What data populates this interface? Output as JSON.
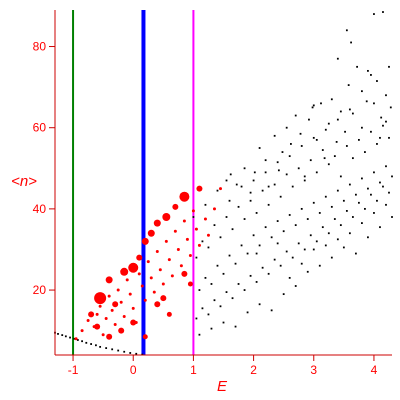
{
  "chart_data": {
    "type": "scatter",
    "xlabel": "E",
    "ylabel_parts": {
      "open": "<",
      "var": "n",
      "close": ">"
    },
    "xlim": [
      -1.3,
      4.3
    ],
    "ylim": [
      4,
      89
    ],
    "x_ticks": [
      -1,
      0,
      1,
      2,
      3,
      4
    ],
    "y_ticks": [
      20,
      40,
      60,
      80
    ],
    "x_tick_labels": [
      "-1",
      "0",
      "1",
      "2",
      "3",
      "4"
    ],
    "y_tick_labels": [
      "20",
      "40",
      "60",
      "80"
    ],
    "vertical_lines": [
      {
        "x": -1.0,
        "color": "#008000",
        "weight": "thin"
      },
      {
        "x": 0.17,
        "color": "#0000ff",
        "weight": "thick"
      },
      {
        "x": 1.0,
        "color": "#ff00ff",
        "weight": "thin"
      }
    ],
    "series": [
      {
        "color": "#000000",
        "marker": "dot",
        "points": [
          [
            -1.3,
            9.5
          ],
          [
            -1.25,
            9.2
          ],
          [
            -1.18,
            8.9
          ],
          [
            -1.12,
            8.6
          ],
          [
            -1.05,
            8.3
          ],
          [
            -0.98,
            8.0
          ],
          [
            -0.92,
            7.7
          ],
          [
            -0.85,
            7.4
          ],
          [
            -0.78,
            7.0
          ],
          [
            -0.7,
            6.7
          ],
          [
            -0.62,
            6.4
          ],
          [
            -0.55,
            6.0
          ],
          [
            -0.45,
            5.7
          ],
          [
            -0.35,
            5.4
          ],
          [
            -0.25,
            5.1
          ],
          [
            -0.15,
            4.8
          ],
          [
            -0.05,
            4.5
          ],
          [
            0.05,
            4.3
          ],
          [
            0.15,
            4.1
          ],
          [
            1.55,
            47.0
          ],
          [
            1.62,
            48.5
          ],
          [
            1.72,
            46.0
          ],
          [
            1.85,
            50.0
          ],
          [
            1.95,
            44.0
          ],
          [
            2.02,
            49.0
          ],
          [
            2.1,
            55.0
          ],
          [
            2.2,
            52.0
          ],
          [
            2.25,
            45.5
          ],
          [
            2.35,
            58.0
          ],
          [
            2.42,
            49.5
          ],
          [
            2.48,
            54.0
          ],
          [
            2.55,
            60.0
          ],
          [
            2.62,
            56.0
          ],
          [
            2.7,
            63.0
          ],
          [
            2.78,
            58.5
          ],
          [
            2.85,
            48.0
          ],
          [
            2.92,
            62.0
          ],
          [
            3.0,
            65.5
          ],
          [
            3.05,
            57.0
          ],
          [
            3.12,
            66.0
          ],
          [
            3.18,
            52.5
          ],
          [
            3.25,
            61.0
          ],
          [
            3.3,
            67.0
          ],
          [
            3.38,
            56.5
          ],
          [
            3.45,
            64.0
          ],
          [
            3.52,
            59.0
          ],
          [
            3.58,
            70.5
          ],
          [
            3.65,
            63.5
          ],
          [
            3.72,
            75.0
          ],
          [
            3.8,
            69.0
          ],
          [
            3.88,
            66.5
          ],
          [
            3.95,
            73.0
          ],
          [
            4.05,
            71.5
          ],
          [
            4.12,
            62.5
          ],
          [
            4.2,
            68.0
          ],
          [
            4.28,
            65.0
          ],
          [
            3.4,
            77.0
          ],
          [
            3.62,
            81.0
          ],
          [
            3.9,
            74.0
          ],
          [
            4.0,
            88.0
          ],
          [
            4.15,
            88.5
          ],
          [
            4.25,
            75.0
          ],
          [
            4.1,
            57.5
          ],
          [
            3.55,
            84.0
          ],
          [
            2.98,
            65.0
          ],
          [
            1.05,
            28.0
          ],
          [
            1.15,
            32.0
          ],
          [
            1.25,
            30.5
          ],
          [
            1.35,
            36.0
          ],
          [
            1.45,
            33.0
          ],
          [
            1.55,
            38.0
          ],
          [
            1.65,
            35.0
          ],
          [
            1.75,
            40.5
          ],
          [
            1.85,
            37.5
          ],
          [
            1.95,
            42.0
          ],
          [
            2.05,
            39.0
          ],
          [
            2.15,
            44.5
          ],
          [
            2.25,
            41.0
          ],
          [
            2.35,
            46.0
          ],
          [
            2.45,
            43.0
          ],
          [
            2.55,
            48.5
          ],
          [
            2.65,
            45.5
          ],
          [
            2.75,
            50.0
          ],
          [
            2.85,
            47.0
          ],
          [
            2.95,
            52.0
          ],
          [
            3.05,
            49.0
          ],
          [
            3.15,
            54.5
          ],
          [
            3.25,
            51.0
          ],
          [
            3.35,
            53.0
          ],
          [
            3.45,
            48.0
          ],
          [
            3.55,
            55.5
          ],
          [
            3.65,
            52.5
          ],
          [
            3.75,
            57.0
          ],
          [
            3.85,
            54.0
          ],
          [
            3.95,
            59.0
          ],
          [
            4.05,
            56.0
          ],
          [
            4.15,
            60.5
          ],
          [
            4.25,
            57.5
          ],
          [
            1.1,
            20.0
          ],
          [
            1.2,
            23.0
          ],
          [
            1.3,
            21.5
          ],
          [
            1.4,
            26.0
          ],
          [
            1.5,
            24.0
          ],
          [
            1.6,
            28.5
          ],
          [
            1.7,
            26.5
          ],
          [
            1.8,
            31.0
          ],
          [
            1.9,
            29.0
          ],
          [
            2.0,
            33.5
          ],
          [
            2.1,
            31.0
          ],
          [
            2.2,
            35.5
          ],
          [
            2.3,
            33.0
          ],
          [
            2.4,
            37.0
          ],
          [
            2.5,
            34.5
          ],
          [
            2.6,
            38.5
          ],
          [
            2.7,
            36.0
          ],
          [
            2.8,
            40.0
          ],
          [
            2.9,
            37.5
          ],
          [
            3.0,
            41.5
          ],
          [
            3.1,
            39.0
          ],
          [
            3.2,
            43.0
          ],
          [
            3.3,
            40.5
          ],
          [
            3.4,
            44.5
          ],
          [
            3.5,
            42.0
          ],
          [
            3.6,
            46.0
          ],
          [
            3.7,
            43.5
          ],
          [
            3.8,
            47.5
          ],
          [
            3.9,
            45.0
          ],
          [
            4.0,
            49.0
          ],
          [
            4.1,
            46.5
          ],
          [
            4.2,
            50.5
          ],
          [
            4.3,
            48.0
          ],
          [
            1.05,
            13.0
          ],
          [
            1.15,
            15.5
          ],
          [
            1.25,
            14.0
          ],
          [
            1.35,
            17.5
          ],
          [
            1.45,
            16.0
          ],
          [
            1.55,
            19.5
          ],
          [
            1.65,
            18.0
          ],
          [
            1.75,
            21.5
          ],
          [
            1.85,
            20.0
          ],
          [
            1.95,
            23.5
          ],
          [
            2.05,
            22.0
          ],
          [
            2.15,
            25.5
          ],
          [
            2.25,
            24.0
          ],
          [
            2.35,
            27.5
          ],
          [
            2.45,
            26.0
          ],
          [
            2.55,
            29.5
          ],
          [
            2.65,
            28.0
          ],
          [
            2.75,
            31.5
          ],
          [
            2.85,
            30.0
          ],
          [
            2.95,
            33.5
          ],
          [
            3.05,
            32.0
          ],
          [
            3.15,
            35.5
          ],
          [
            3.25,
            34.0
          ],
          [
            3.35,
            37.5
          ],
          [
            3.45,
            36.0
          ],
          [
            3.55,
            39.5
          ],
          [
            3.65,
            38.0
          ],
          [
            3.75,
            41.5
          ],
          [
            3.85,
            40.0
          ],
          [
            3.95,
            43.5
          ],
          [
            4.05,
            42.0
          ],
          [
            4.15,
            45.5
          ],
          [
            4.25,
            44.0
          ],
          [
            1.1,
            9.0
          ],
          [
            1.3,
            10.5
          ],
          [
            1.5,
            12.0
          ],
          [
            1.7,
            11.0
          ],
          [
            1.9,
            14.5
          ],
          [
            2.1,
            16.5
          ],
          [
            2.3,
            15.0
          ],
          [
            2.5,
            19.0
          ],
          [
            2.7,
            21.0
          ],
          [
            2.9,
            24.5
          ],
          [
            3.1,
            26.0
          ],
          [
            3.3,
            28.0
          ],
          [
            3.5,
            30.5
          ],
          [
            3.7,
            29.0
          ],
          [
            3.9,
            33.0
          ],
          [
            4.1,
            35.5
          ],
          [
            4.3,
            38.0
          ],
          [
            2.05,
            29.0
          ],
          [
            2.4,
            31.5
          ],
          [
            2.6,
            23.0
          ],
          [
            2.8,
            26.5
          ],
          [
            3.0,
            30.0
          ],
          [
            3.2,
            31.0
          ],
          [
            3.4,
            32.5
          ],
          [
            3.6,
            34.0
          ],
          [
            3.8,
            36.5
          ],
          [
            4.0,
            39.0
          ],
          [
            4.2,
            41.0
          ],
          [
            1.6,
            42.0
          ],
          [
            1.8,
            45.5
          ],
          [
            2.0,
            47.0
          ],
          [
            2.2,
            49.0
          ],
          [
            2.4,
            51.5
          ],
          [
            2.6,
            53.0
          ],
          [
            2.8,
            55.5
          ],
          [
            3.0,
            57.5
          ],
          [
            3.2,
            59.5
          ],
          [
            3.4,
            62.0
          ],
          [
            3.6,
            64.5
          ],
          [
            3.8,
            60.0
          ],
          [
            4.0,
            66.0
          ],
          [
            4.2,
            61.5
          ],
          [
            1.4,
            44.5
          ],
          [
            1.2,
            41.0
          ],
          [
            1.0,
            38.0
          ]
        ]
      },
      {
        "color": "#ff0000",
        "marker": "filled-circle-sized",
        "points": [
          [
            -0.95,
            8.0,
            1.5
          ],
          [
            -0.85,
            10.0,
            1.5
          ],
          [
            -0.75,
            12.5,
            1.5
          ],
          [
            -0.65,
            11.0,
            1.5
          ],
          [
            -0.6,
            14.0,
            1.5
          ],
          [
            -0.55,
            16.0,
            1.5
          ],
          [
            -0.5,
            9.0,
            1.5
          ],
          [
            -0.45,
            13.0,
            1.5
          ],
          [
            -0.4,
            18.5,
            1.5
          ],
          [
            -0.35,
            15.0,
            1.5
          ],
          [
            -0.3,
            11.5,
            1.5
          ],
          [
            -0.25,
            20.0,
            1.5
          ],
          [
            -0.2,
            17.0,
            1.5
          ],
          [
            -0.15,
            13.5,
            1.5
          ],
          [
            -0.1,
            22.5,
            1.5
          ],
          [
            -0.05,
            19.0,
            1.5
          ],
          [
            0.0,
            15.5,
            1.5
          ],
          [
            0.05,
            12.0,
            1.5
          ],
          [
            0.1,
            24.0,
            1.5
          ],
          [
            0.15,
            21.0,
            1.5
          ],
          [
            0.2,
            17.5,
            1.5
          ],
          [
            0.25,
            27.0,
            1.5
          ],
          [
            0.3,
            23.0,
            1.5
          ],
          [
            0.35,
            19.5,
            1.5
          ],
          [
            0.4,
            29.5,
            1.5
          ],
          [
            0.45,
            25.0,
            1.5
          ],
          [
            0.5,
            21.5,
            1.5
          ],
          [
            0.55,
            32.0,
            1.5
          ],
          [
            0.6,
            27.5,
            1.5
          ],
          [
            0.65,
            23.5,
            1.5
          ],
          [
            0.7,
            34.5,
            1.5
          ],
          [
            0.75,
            30.0,
            1.5
          ],
          [
            0.8,
            26.0,
            1.5
          ],
          [
            0.85,
            37.0,
            1.5
          ],
          [
            0.9,
            32.5,
            1.5
          ],
          [
            0.95,
            28.5,
            1.5
          ],
          [
            1.0,
            39.5,
            1.5
          ],
          [
            1.05,
            35.0,
            1.5
          ],
          [
            1.1,
            31.0,
            1.5
          ],
          [
            1.2,
            37.5,
            1.5
          ],
          [
            1.25,
            33.5,
            1.5
          ],
          [
            1.35,
            40.0,
            1.5
          ],
          [
            1.45,
            45.0,
            1.5
          ],
          [
            -0.7,
            14.0,
            3.0
          ],
          [
            -0.55,
            18.0,
            6.0
          ],
          [
            -0.4,
            22.5,
            3.5
          ],
          [
            -0.3,
            16.5,
            3.0
          ],
          [
            -0.15,
            24.5,
            4.0
          ],
          [
            0.0,
            25.5,
            5.0
          ],
          [
            0.1,
            28.0,
            3.0
          ],
          [
            0.2,
            32.0,
            3.5
          ],
          [
            0.3,
            34.0,
            3.5
          ],
          [
            0.4,
            36.5,
            3.5
          ],
          [
            0.55,
            38.0,
            4.0
          ],
          [
            0.7,
            40.5,
            3.0
          ],
          [
            0.85,
            43.0,
            5.0
          ],
          [
            1.1,
            45.0,
            3.0
          ],
          [
            -0.4,
            8.5,
            3.0
          ],
          [
            0.0,
            12.0,
            3.0
          ],
          [
            0.4,
            16.5,
            3.0
          ],
          [
            0.85,
            24.0,
            3.0
          ],
          [
            0.2,
            8.5,
            2.5
          ],
          [
            0.6,
            14.0,
            2.5
          ],
          [
            -0.6,
            11.0,
            3.0
          ],
          [
            -0.2,
            10.0,
            3.0
          ],
          [
            0.5,
            18.0,
            3.0
          ],
          [
            0.95,
            21.5,
            2.5
          ]
        ]
      }
    ]
  }
}
